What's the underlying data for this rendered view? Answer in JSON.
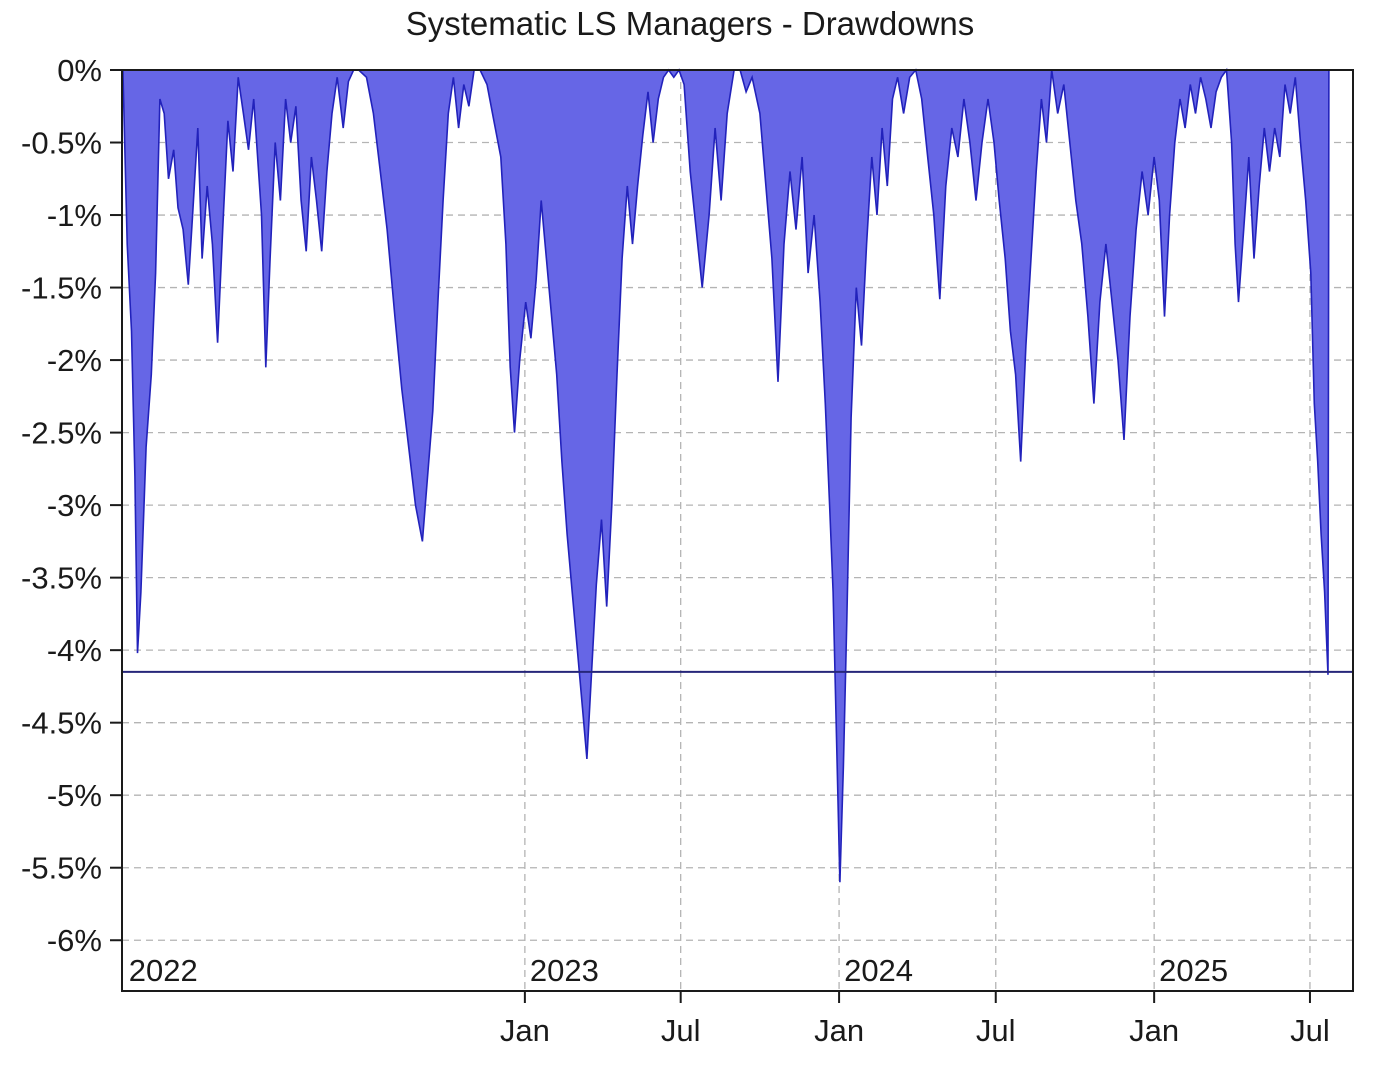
{
  "chart_data": {
    "type": "area",
    "title": "Systematic LS Managers - Drawdowns",
    "xlabel": "",
    "ylabel": "",
    "x_range": [
      "2021-09-20",
      "2025-08-20"
    ],
    "ylim": [
      -6.35,
      0
    ],
    "grid": true,
    "grid_style": "dashed",
    "fill_color": "#6666e6",
    "line_color": "#2222bb",
    "y_ticks": [
      {
        "value": 0,
        "label": "0%"
      },
      {
        "value": -0.5,
        "label": "-0.5%"
      },
      {
        "value": -1,
        "label": "-1%"
      },
      {
        "value": -1.5,
        "label": "-1.5%"
      },
      {
        "value": -2,
        "label": "-2%"
      },
      {
        "value": -2.5,
        "label": "-2.5%"
      },
      {
        "value": -3,
        "label": "-3%"
      },
      {
        "value": -3.5,
        "label": "-3.5%"
      },
      {
        "value": -4,
        "label": "-4%"
      },
      {
        "value": -4.5,
        "label": "-4.5%"
      },
      {
        "value": -5,
        "label": "-5%"
      },
      {
        "value": -5.5,
        "label": "-5.5%"
      },
      {
        "value": -6,
        "label": "-6%"
      }
    ],
    "x_ticks": [
      {
        "date": "2023-01-01",
        "label": "Jan"
      },
      {
        "date": "2023-07-01",
        "label": "Jul"
      },
      {
        "date": "2024-01-01",
        "label": "Jan"
      },
      {
        "date": "2024-07-01",
        "label": "Jul"
      },
      {
        "date": "2025-01-01",
        "label": "Jan"
      },
      {
        "date": "2025-07-01",
        "label": "Jul"
      }
    ],
    "year_labels": [
      {
        "date": "2021-09-22",
        "label": "2022"
      },
      {
        "date": "2023-01-01",
        "label": "2023"
      },
      {
        "date": "2024-01-01",
        "label": "2024"
      },
      {
        "date": "2025-01-01",
        "label": "2025"
      }
    ],
    "reference_line": {
      "value": -4.15
    },
    "series": [
      {
        "points": [
          [
            "2021-09-21",
            0.0
          ],
          [
            "2021-09-26",
            -1.2
          ],
          [
            "2021-10-01",
            -1.8
          ],
          [
            "2021-10-05",
            -2.8
          ],
          [
            "2021-10-08",
            -4.02
          ],
          [
            "2021-10-12",
            -3.6
          ],
          [
            "2021-10-18",
            -2.6
          ],
          [
            "2021-10-24",
            -2.1
          ],
          [
            "2021-10-29",
            -1.4
          ],
          [
            "2021-11-03",
            -0.2
          ],
          [
            "2021-11-08",
            -0.3
          ],
          [
            "2021-11-13",
            -0.75
          ],
          [
            "2021-11-19",
            -0.55
          ],
          [
            "2021-11-24",
            -0.95
          ],
          [
            "2021-11-30",
            -1.1
          ],
          [
            "2021-12-06",
            -1.48
          ],
          [
            "2021-12-11",
            -1.0
          ],
          [
            "2021-12-17",
            -0.4
          ],
          [
            "2021-12-22",
            -1.3
          ],
          [
            "2021-12-28",
            -0.8
          ],
          [
            "2022-01-03",
            -1.2
          ],
          [
            "2022-01-09",
            -1.88
          ],
          [
            "2022-01-15",
            -1.1
          ],
          [
            "2022-01-21",
            -0.35
          ],
          [
            "2022-01-27",
            -0.7
          ],
          [
            "2022-02-02",
            -0.05
          ],
          [
            "2022-02-08",
            -0.3
          ],
          [
            "2022-02-14",
            -0.55
          ],
          [
            "2022-02-20",
            -0.2
          ],
          [
            "2022-03-01",
            -1.0
          ],
          [
            "2022-03-06",
            -2.05
          ],
          [
            "2022-03-11",
            -1.3
          ],
          [
            "2022-03-17",
            -0.5
          ],
          [
            "2022-03-23",
            -0.9
          ],
          [
            "2022-03-29",
            -0.2
          ],
          [
            "2022-04-04",
            -0.5
          ],
          [
            "2022-04-10",
            -0.25
          ],
          [
            "2022-04-16",
            -0.9
          ],
          [
            "2022-04-22",
            -1.25
          ],
          [
            "2022-04-28",
            -0.6
          ],
          [
            "2022-05-04",
            -0.9
          ],
          [
            "2022-05-10",
            -1.25
          ],
          [
            "2022-05-16",
            -0.7
          ],
          [
            "2022-05-22",
            -0.3
          ],
          [
            "2022-05-28",
            -0.05
          ],
          [
            "2022-06-04",
            -0.4
          ],
          [
            "2022-06-10",
            -0.08
          ],
          [
            "2022-06-16",
            0.0
          ],
          [
            "2022-06-22",
            0.0
          ],
          [
            "2022-07-01",
            -0.05
          ],
          [
            "2022-07-09",
            -0.3
          ],
          [
            "2022-07-17",
            -0.7
          ],
          [
            "2022-07-25",
            -1.1
          ],
          [
            "2022-08-03",
            -1.7
          ],
          [
            "2022-08-11",
            -2.2
          ],
          [
            "2022-08-19",
            -2.6
          ],
          [
            "2022-08-27",
            -3.0
          ],
          [
            "2022-09-04",
            -3.25
          ],
          [
            "2022-09-10",
            -2.8
          ],
          [
            "2022-09-16",
            -2.35
          ],
          [
            "2022-09-22",
            -1.6
          ],
          [
            "2022-09-28",
            -0.9
          ],
          [
            "2022-10-04",
            -0.3
          ],
          [
            "2022-10-10",
            -0.05
          ],
          [
            "2022-10-16",
            -0.4
          ],
          [
            "2022-10-22",
            -0.1
          ],
          [
            "2022-10-28",
            -0.25
          ],
          [
            "2022-11-03",
            0.0
          ],
          [
            "2022-11-10",
            0.0
          ],
          [
            "2022-11-18",
            -0.1
          ],
          [
            "2022-11-26",
            -0.35
          ],
          [
            "2022-12-04",
            -0.6
          ],
          [
            "2022-12-10",
            -1.2
          ],
          [
            "2022-12-15",
            -2.05
          ],
          [
            "2022-12-20",
            -2.5
          ],
          [
            "2022-12-26",
            -2.0
          ],
          [
            "2023-01-02",
            -1.6
          ],
          [
            "2023-01-08",
            -1.85
          ],
          [
            "2023-01-14",
            -1.45
          ],
          [
            "2023-01-20",
            -0.9
          ],
          [
            "2023-01-26",
            -1.3
          ],
          [
            "2023-02-01",
            -1.7
          ],
          [
            "2023-02-07",
            -2.1
          ],
          [
            "2023-02-13",
            -2.7
          ],
          [
            "2023-02-19",
            -3.2
          ],
          [
            "2023-02-25",
            -3.6
          ],
          [
            "2023-03-03",
            -4.0
          ],
          [
            "2023-03-09",
            -4.4
          ],
          [
            "2023-03-14",
            -4.75
          ],
          [
            "2023-03-19",
            -4.2
          ],
          [
            "2023-03-25",
            -3.55
          ],
          [
            "2023-03-31",
            -3.1
          ],
          [
            "2023-04-06",
            -3.7
          ],
          [
            "2023-04-12",
            -3.0
          ],
          [
            "2023-04-18",
            -2.1
          ],
          [
            "2023-04-24",
            -1.3
          ],
          [
            "2023-04-30",
            -0.8
          ],
          [
            "2023-05-06",
            -1.2
          ],
          [
            "2023-05-12",
            -0.8
          ],
          [
            "2023-05-18",
            -0.45
          ],
          [
            "2023-05-24",
            -0.15
          ],
          [
            "2023-05-30",
            -0.5
          ],
          [
            "2023-06-05",
            -0.2
          ],
          [
            "2023-06-11",
            -0.05
          ],
          [
            "2023-06-17",
            0.0
          ],
          [
            "2023-06-23",
            -0.05
          ],
          [
            "2023-06-29",
            0.0
          ],
          [
            "2023-07-05",
            -0.1
          ],
          [
            "2023-07-12",
            -0.7
          ],
          [
            "2023-07-19",
            -1.1
          ],
          [
            "2023-07-26",
            -1.5
          ],
          [
            "2023-08-03",
            -1.0
          ],
          [
            "2023-08-10",
            -0.4
          ],
          [
            "2023-08-17",
            -0.9
          ],
          [
            "2023-08-24",
            -0.3
          ],
          [
            "2023-09-01",
            0.0
          ],
          [
            "2023-09-08",
            0.0
          ],
          [
            "2023-09-15",
            -0.15
          ],
          [
            "2023-09-22",
            -0.05
          ],
          [
            "2023-10-01",
            -0.3
          ],
          [
            "2023-10-08",
            -0.8
          ],
          [
            "2023-10-15",
            -1.3
          ],
          [
            "2023-10-22",
            -2.15
          ],
          [
            "2023-10-29",
            -1.2
          ],
          [
            "2023-11-05",
            -0.7
          ],
          [
            "2023-11-12",
            -1.1
          ],
          [
            "2023-11-19",
            -0.6
          ],
          [
            "2023-11-26",
            -1.4
          ],
          [
            "2023-12-03",
            -1.0
          ],
          [
            "2023-12-10",
            -1.6
          ],
          [
            "2023-12-16",
            -2.3
          ],
          [
            "2023-12-21",
            -3.0
          ],
          [
            "2023-12-25",
            -3.6
          ],
          [
            "2023-12-29",
            -4.6
          ],
          [
            "2024-01-02",
            -5.6
          ],
          [
            "2024-01-06",
            -4.8
          ],
          [
            "2024-01-10",
            -3.8
          ],
          [
            "2024-01-15",
            -2.4
          ],
          [
            "2024-01-21",
            -1.5
          ],
          [
            "2024-01-27",
            -1.9
          ],
          [
            "2024-02-02",
            -1.2
          ],
          [
            "2024-02-08",
            -0.6
          ],
          [
            "2024-02-14",
            -1.0
          ],
          [
            "2024-02-20",
            -0.4
          ],
          [
            "2024-02-26",
            -0.8
          ],
          [
            "2024-03-03",
            -0.2
          ],
          [
            "2024-03-09",
            -0.05
          ],
          [
            "2024-03-16",
            -0.3
          ],
          [
            "2024-03-23",
            -0.05
          ],
          [
            "2024-03-30",
            0.0
          ],
          [
            "2024-04-06",
            -0.2
          ],
          [
            "2024-04-13",
            -0.6
          ],
          [
            "2024-04-20",
            -1.0
          ],
          [
            "2024-04-27",
            -1.58
          ],
          [
            "2024-05-04",
            -0.8
          ],
          [
            "2024-05-11",
            -0.4
          ],
          [
            "2024-05-18",
            -0.6
          ],
          [
            "2024-05-25",
            -0.2
          ],
          [
            "2024-06-01",
            -0.5
          ],
          [
            "2024-06-08",
            -0.9
          ],
          [
            "2024-06-15",
            -0.5
          ],
          [
            "2024-06-22",
            -0.2
          ],
          [
            "2024-06-29",
            -0.5
          ],
          [
            "2024-07-05",
            -0.9
          ],
          [
            "2024-07-12",
            -1.3
          ],
          [
            "2024-07-18",
            -1.8
          ],
          [
            "2024-07-24",
            -2.1
          ],
          [
            "2024-07-30",
            -2.7
          ],
          [
            "2024-08-05",
            -1.9
          ],
          [
            "2024-08-11",
            -1.3
          ],
          [
            "2024-08-17",
            -0.7
          ],
          [
            "2024-08-23",
            -0.2
          ],
          [
            "2024-08-29",
            -0.5
          ],
          [
            "2024-09-04",
            0.0
          ],
          [
            "2024-09-11",
            -0.3
          ],
          [
            "2024-09-18",
            -0.1
          ],
          [
            "2024-09-25",
            -0.5
          ],
          [
            "2024-10-02",
            -0.9
          ],
          [
            "2024-10-09",
            -1.2
          ],
          [
            "2024-10-16",
            -1.7
          ],
          [
            "2024-10-23",
            -2.3
          ],
          [
            "2024-10-30",
            -1.6
          ],
          [
            "2024-11-06",
            -1.2
          ],
          [
            "2024-11-13",
            -1.6
          ],
          [
            "2024-11-20",
            -2.0
          ],
          [
            "2024-11-27",
            -2.55
          ],
          [
            "2024-12-04",
            -1.7
          ],
          [
            "2024-12-11",
            -1.1
          ],
          [
            "2024-12-18",
            -0.7
          ],
          [
            "2024-12-25",
            -1.0
          ],
          [
            "2025-01-01",
            -0.6
          ],
          [
            "2025-01-07",
            -0.9
          ],
          [
            "2025-01-13",
            -1.7
          ],
          [
            "2025-01-19",
            -1.0
          ],
          [
            "2025-01-25",
            -0.5
          ],
          [
            "2025-01-31",
            -0.2
          ],
          [
            "2025-02-06",
            -0.4
          ],
          [
            "2025-02-12",
            -0.1
          ],
          [
            "2025-02-18",
            -0.3
          ],
          [
            "2025-02-24",
            -0.05
          ],
          [
            "2025-03-02",
            -0.2
          ],
          [
            "2025-03-08",
            -0.4
          ],
          [
            "2025-03-14",
            -0.15
          ],
          [
            "2025-03-20",
            -0.05
          ],
          [
            "2025-03-26",
            0.0
          ],
          [
            "2025-04-01",
            -0.5
          ],
          [
            "2025-04-05",
            -1.2
          ],
          [
            "2025-04-09",
            -1.6
          ],
          [
            "2025-04-15",
            -1.1
          ],
          [
            "2025-04-21",
            -0.6
          ],
          [
            "2025-04-27",
            -1.3
          ],
          [
            "2025-05-03",
            -0.8
          ],
          [
            "2025-05-09",
            -0.4
          ],
          [
            "2025-05-15",
            -0.7
          ],
          [
            "2025-05-21",
            -0.4
          ],
          [
            "2025-05-27",
            -0.6
          ],
          [
            "2025-06-02",
            -0.1
          ],
          [
            "2025-06-08",
            -0.3
          ],
          [
            "2025-06-14",
            -0.05
          ],
          [
            "2025-06-20",
            -0.5
          ],
          [
            "2025-06-26",
            -0.9
          ],
          [
            "2025-07-02",
            -1.4
          ],
          [
            "2025-07-06",
            -2.3
          ],
          [
            "2025-07-10",
            -2.7
          ],
          [
            "2025-07-14",
            -3.2
          ],
          [
            "2025-07-18",
            -3.6
          ],
          [
            "2025-07-22",
            -4.17
          ],
          [
            "2025-07-23",
            0.0
          ]
        ]
      }
    ]
  }
}
